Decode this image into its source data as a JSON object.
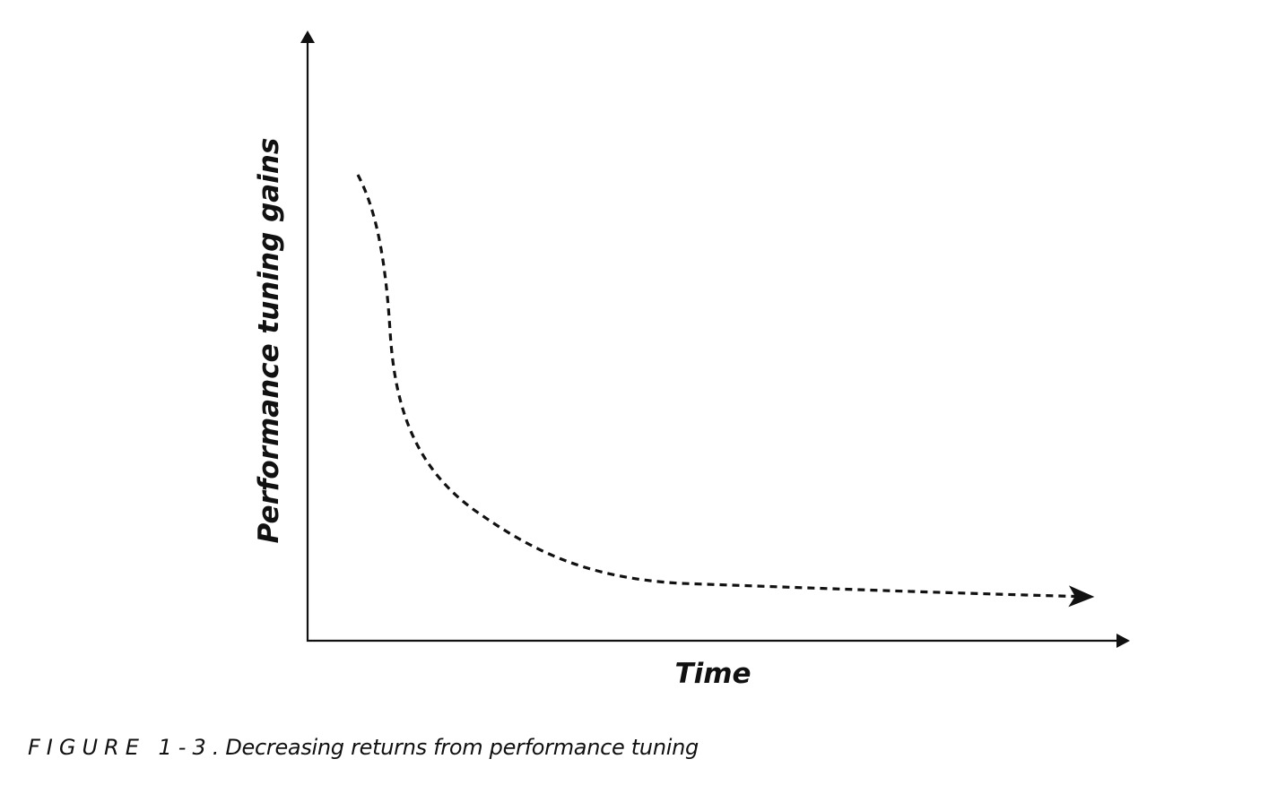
{
  "figure": {
    "y_axis_label": "Performance tuning gains",
    "x_axis_label": "Time",
    "caption_label": "FIGURE 1-3.",
    "caption_text": "Decreasing returns from performance tuning",
    "curve_style": "dashed",
    "curve_end": "arrowhead",
    "trend": "steep decrease then plateau",
    "line_color": "#111111"
  }
}
